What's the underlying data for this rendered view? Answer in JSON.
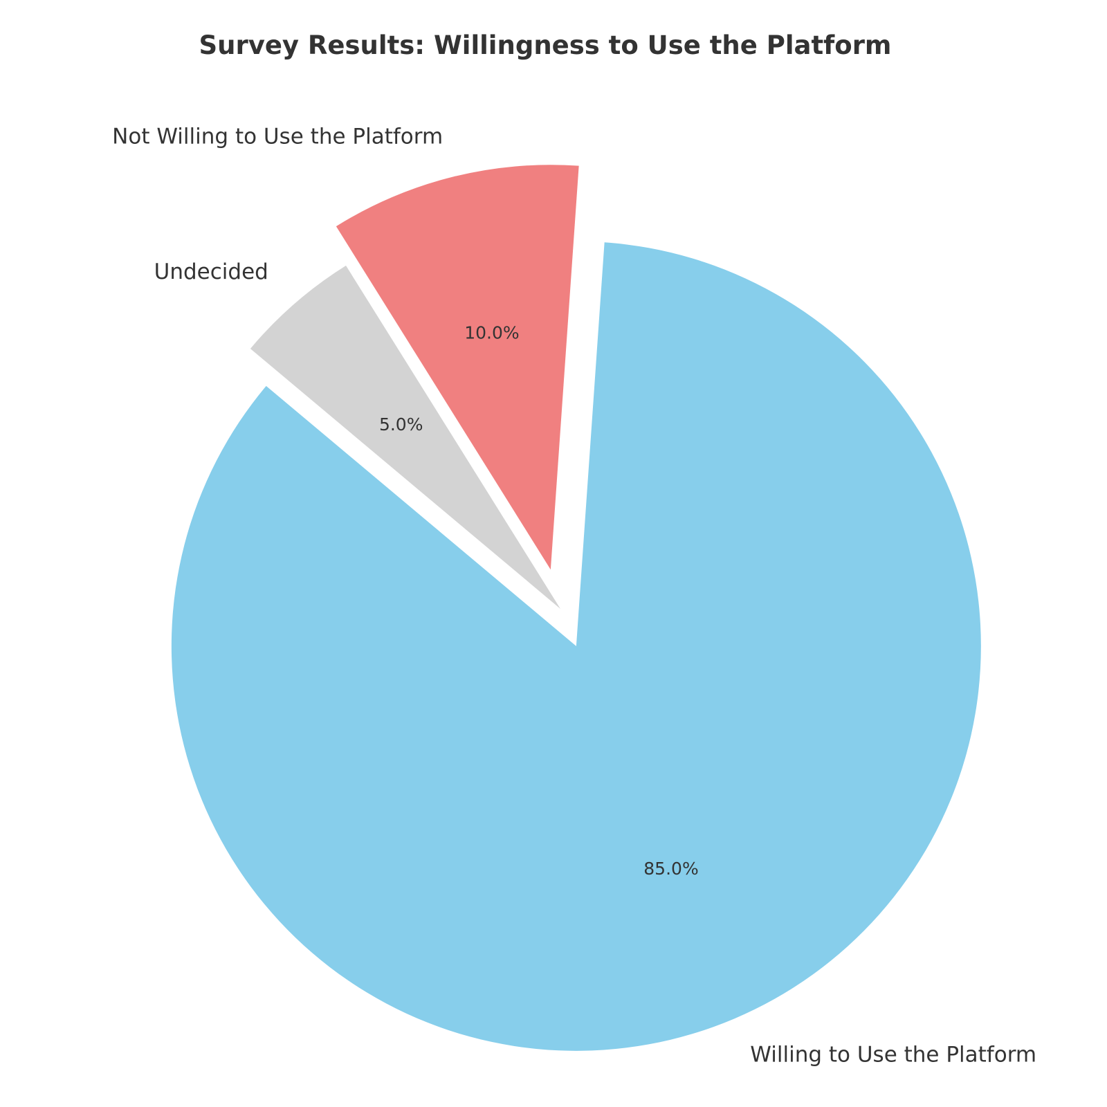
{
  "chart_data": {
    "type": "pie",
    "title": "Survey Results: Willingness to Use the Platform",
    "slices": [
      {
        "label": "Willing to Use the Platform",
        "value": 85.0,
        "pct_label": "85.0%",
        "color": "#87CEEB",
        "exploded": true
      },
      {
        "label": "Not Willing to Use the Platform",
        "value": 10.0,
        "pct_label": "10.0%",
        "color": "#F08080",
        "exploded": true
      },
      {
        "label": "Undecided",
        "value": 5.0,
        "pct_label": "5.0%",
        "color": "#D3D3D3",
        "exploded": false
      }
    ],
    "start_angle_deg": 140,
    "direction": "counterclockwise",
    "legend": "none"
  }
}
